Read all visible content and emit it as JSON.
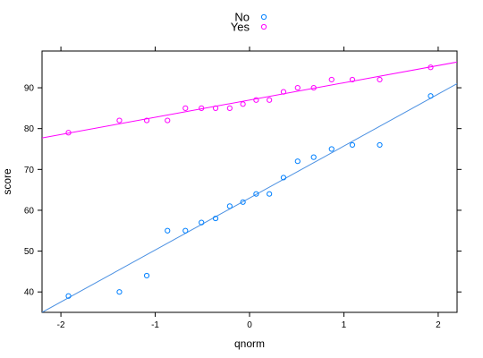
{
  "chart_data": {
    "type": "scatter",
    "title": "",
    "xlabel": "qnorm",
    "ylabel": "score",
    "xlim": [
      -2.2,
      2.2
    ],
    "ylim": [
      35,
      99
    ],
    "x_ticks": [
      -2,
      -1,
      0,
      1,
      2
    ],
    "y_ticks": [
      40,
      50,
      60,
      70,
      80,
      90
    ],
    "grid": false,
    "legend_position": "top",
    "series": [
      {
        "name": "No",
        "color": "#0080ff",
        "line_color": "#4a90e2",
        "points": [
          {
            "x": -1.92,
            "y": 39
          },
          {
            "x": -1.38,
            "y": 40
          },
          {
            "x": -1.09,
            "y": 44
          },
          {
            "x": -0.87,
            "y": 55
          },
          {
            "x": -0.68,
            "y": 55
          },
          {
            "x": -0.51,
            "y": 57
          },
          {
            "x": -0.36,
            "y": 58
          },
          {
            "x": -0.21,
            "y": 61
          },
          {
            "x": -0.07,
            "y": 62
          },
          {
            "x": 0.07,
            "y": 64
          },
          {
            "x": 0.21,
            "y": 64
          },
          {
            "x": 0.36,
            "y": 68
          },
          {
            "x": 0.51,
            "y": 72
          },
          {
            "x": 0.68,
            "y": 73
          },
          {
            "x": 0.87,
            "y": 75
          },
          {
            "x": 1.09,
            "y": 76
          },
          {
            "x": 1.38,
            "y": 76
          },
          {
            "x": 1.92,
            "y": 88
          }
        ],
        "fit_line": [
          {
            "x": -2.2,
            "y": 35
          },
          {
            "x": 2.2,
            "y": 91
          }
        ]
      },
      {
        "name": "Yes",
        "color": "#ff00ff",
        "line_color": "#ff00ff",
        "points": [
          {
            "x": -1.92,
            "y": 79
          },
          {
            "x": -1.38,
            "y": 82
          },
          {
            "x": -1.09,
            "y": 82
          },
          {
            "x": -0.87,
            "y": 82
          },
          {
            "x": -0.68,
            "y": 85
          },
          {
            "x": -0.51,
            "y": 85
          },
          {
            "x": -0.36,
            "y": 85
          },
          {
            "x": -0.21,
            "y": 85
          },
          {
            "x": -0.07,
            "y": 86
          },
          {
            "x": 0.07,
            "y": 87
          },
          {
            "x": 0.21,
            "y": 87
          },
          {
            "x": 0.36,
            "y": 89
          },
          {
            "x": 0.51,
            "y": 90
          },
          {
            "x": 0.68,
            "y": 90
          },
          {
            "x": 0.87,
            "y": 92
          },
          {
            "x": 1.09,
            "y": 92
          },
          {
            "x": 1.38,
            "y": 92
          },
          {
            "x": 1.92,
            "y": 95
          }
        ],
        "fit_line": [
          {
            "x": -2.2,
            "y": 77.7
          },
          {
            "x": 2.2,
            "y": 96.3
          }
        ]
      }
    ]
  }
}
